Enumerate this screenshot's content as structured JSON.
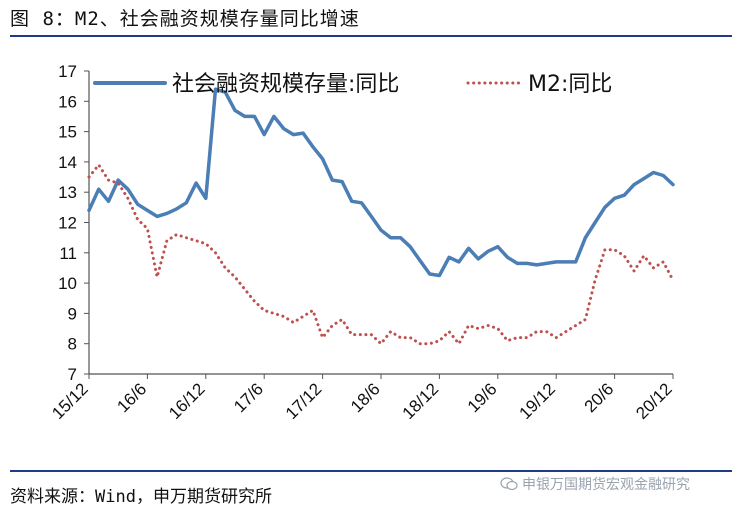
{
  "title": "图 8：M2、社会融资规模存量同比增速",
  "source": "资料来源：Wind，申万期货研究所",
  "watermark": "申银万国期货宏观金融研究",
  "chart_data": {
    "type": "line",
    "title": "图 8：M2、社会融资规模存量同比增速",
    "ylim": [
      7,
      17
    ],
    "yticks": [
      7,
      8,
      9,
      10,
      11,
      12,
      13,
      14,
      15,
      16,
      17
    ],
    "x_tick_labels": [
      "15/12",
      "16/6",
      "16/12",
      "17/6",
      "17/12",
      "18/6",
      "18/12",
      "19/6",
      "19/12",
      "20/6",
      "20/12"
    ],
    "x_tick_index": [
      0,
      6,
      12,
      18,
      24,
      30,
      36,
      42,
      48,
      54,
      60
    ],
    "legend_position": "top",
    "grid": false,
    "series": [
      {
        "name": "社会融资规模存量:同比",
        "color": "#4a7eb4",
        "style": "solid",
        "values": [
          12.4,
          13.1,
          12.7,
          13.4,
          13.1,
          12.6,
          12.4,
          12.2,
          12.3,
          12.45,
          12.65,
          13.3,
          12.8,
          16.4,
          16.3,
          15.7,
          15.5,
          15.5,
          14.9,
          15.5,
          15.1,
          14.9,
          14.95,
          14.5,
          14.1,
          13.4,
          13.35,
          12.7,
          12.65,
          12.2,
          11.75,
          11.5,
          11.5,
          11.2,
          10.75,
          10.3,
          10.25,
          10.85,
          10.7,
          11.15,
          10.8,
          11.05,
          11.2,
          10.85,
          10.65,
          10.65,
          10.6,
          10.65,
          10.7,
          10.7,
          10.7,
          11.5,
          12.0,
          12.5,
          12.8,
          12.9,
          13.25,
          13.45,
          13.65,
          13.55,
          13.25
        ]
      },
      {
        "name": "M2:同比",
        "color": "#c0504d",
        "style": "dotted",
        "values": [
          13.5,
          13.9,
          13.4,
          13.3,
          12.8,
          12.1,
          11.8,
          10.2,
          11.4,
          11.6,
          11.5,
          11.4,
          11.3,
          11.0,
          10.5,
          10.2,
          9.8,
          9.4,
          9.1,
          9.0,
          8.9,
          8.7,
          8.9,
          9.1,
          8.2,
          8.6,
          8.8,
          8.3,
          8.3,
          8.3,
          8.0,
          8.4,
          8.2,
          8.2,
          8.0,
          8.0,
          8.1,
          8.4,
          8.0,
          8.6,
          8.5,
          8.6,
          8.5,
          8.1,
          8.2,
          8.2,
          8.4,
          8.4,
          8.2,
          8.4,
          8.6,
          8.8,
          10.1,
          11.1,
          11.1,
          10.9,
          10.4,
          10.9,
          10.5,
          10.7,
          10.1
        ]
      }
    ]
  }
}
